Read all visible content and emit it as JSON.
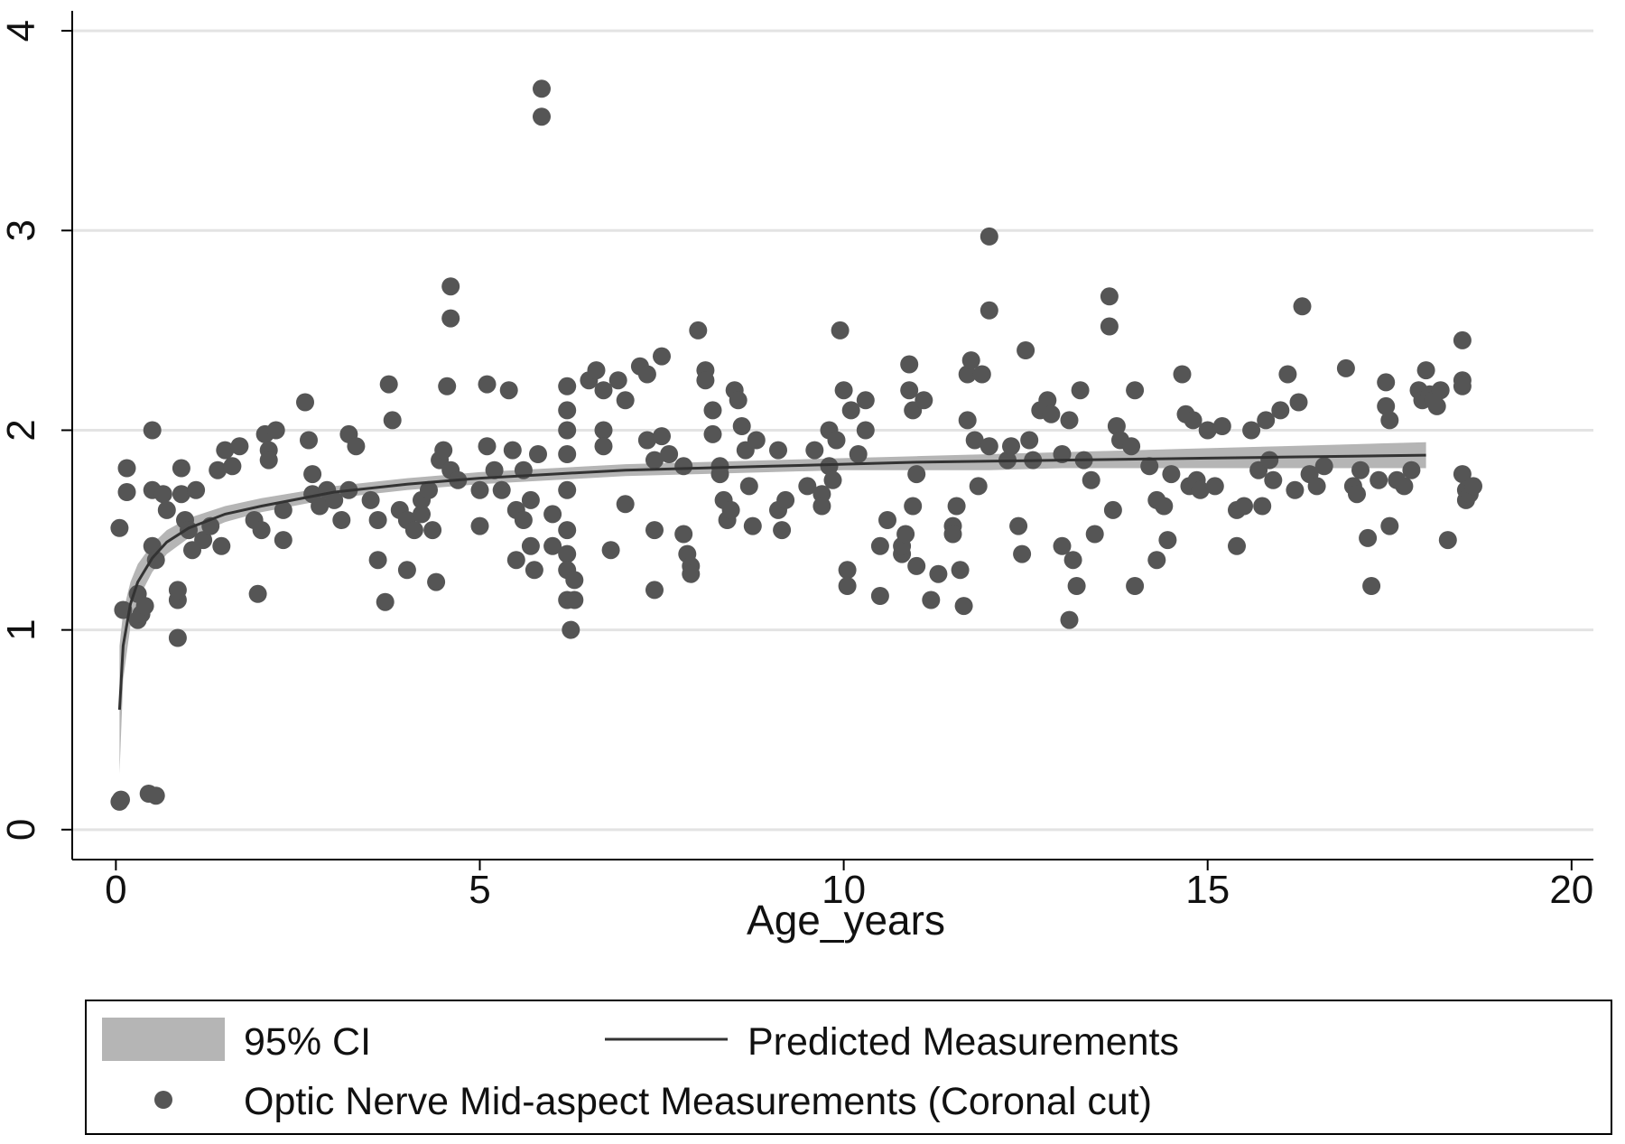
{
  "chart_data": {
    "type": "scatter",
    "title": "",
    "xlabel": "Age_years",
    "ylabel": "",
    "xlim": [
      -0.6,
      20.3
    ],
    "ylim": [
      -0.15,
      4.1
    ],
    "xticks": [
      "0",
      "5",
      "10",
      "15",
      "20"
    ],
    "xtick_values": [
      0,
      5,
      10,
      15,
      20
    ],
    "yticks": [
      "0",
      "1",
      "2",
      "3",
      "4"
    ],
    "ytick_values": [
      0,
      1,
      2,
      3,
      4
    ],
    "grid": "horizontal",
    "legend_position": "bottom",
    "colors": {
      "points": "#555555",
      "line": "#333333",
      "ci_band": "#b5b5b5",
      "grid": "#e3e3e3",
      "axis": "#000000"
    },
    "legend": {
      "ci_label": "95% CI",
      "line_label": "Predicted Measurements",
      "points_label": "Optic Nerve Mid-aspect Measurements (Coronal cut)"
    },
    "fit": {
      "x": [
        0.05,
        0.1,
        0.2,
        0.3,
        0.5,
        0.7,
        1.0,
        1.5,
        2.0,
        3.0,
        4.0,
        5.0,
        6.0,
        7.0,
        8.0,
        9.0,
        10.0,
        11.0,
        12.0,
        13.0,
        14.0,
        15.0,
        16.0,
        17.0,
        18.0
      ],
      "y": [
        0.6,
        0.92,
        1.13,
        1.24,
        1.36,
        1.44,
        1.51,
        1.58,
        1.62,
        1.69,
        1.73,
        1.76,
        1.78,
        1.8,
        1.81,
        1.82,
        1.83,
        1.84,
        1.845,
        1.85,
        1.855,
        1.86,
        1.865,
        1.87,
        1.875
      ],
      "lo": [
        0.28,
        0.75,
        1.02,
        1.15,
        1.29,
        1.38,
        1.46,
        1.54,
        1.59,
        1.66,
        1.7,
        1.73,
        1.75,
        1.77,
        1.78,
        1.79,
        1.8,
        1.8,
        1.8,
        1.81,
        1.81,
        1.81,
        1.81,
        1.81,
        1.81
      ],
      "hi": [
        0.92,
        1.09,
        1.24,
        1.33,
        1.43,
        1.5,
        1.56,
        1.62,
        1.66,
        1.72,
        1.76,
        1.79,
        1.81,
        1.83,
        1.84,
        1.85,
        1.86,
        1.87,
        1.88,
        1.89,
        1.9,
        1.91,
        1.92,
        1.93,
        1.94
      ]
    },
    "points": [
      [
        0.05,
        0.14
      ],
      [
        0.07,
        0.15
      ],
      [
        0.05,
        1.51
      ],
      [
        0.1,
        1.1
      ],
      [
        0.15,
        1.81
      ],
      [
        0.15,
        1.69
      ],
      [
        0.3,
        1.05
      ],
      [
        0.3,
        1.18
      ],
      [
        0.35,
        1.08
      ],
      [
        0.4,
        1.12
      ],
      [
        0.45,
        0.18
      ],
      [
        0.55,
        0.17
      ],
      [
        0.5,
        2.0
      ],
      [
        0.5,
        1.42
      ],
      [
        0.5,
        1.7
      ],
      [
        0.55,
        1.35
      ],
      [
        0.65,
        1.68
      ],
      [
        0.7,
        1.6
      ],
      [
        0.85,
        1.15
      ],
      [
        0.85,
        1.2
      ],
      [
        0.85,
        0.96
      ],
      [
        0.9,
        1.81
      ],
      [
        0.9,
        1.68
      ],
      [
        0.95,
        1.55
      ],
      [
        1.0,
        1.5
      ],
      [
        1.05,
        1.4
      ],
      [
        1.1,
        1.7
      ],
      [
        1.2,
        1.45
      ],
      [
        1.3,
        1.52
      ],
      [
        1.4,
        1.8
      ],
      [
        1.45,
        1.42
      ],
      [
        1.5,
        1.9
      ],
      [
        1.6,
        1.82
      ],
      [
        1.7,
        1.92
      ],
      [
        1.9,
        1.55
      ],
      [
        1.95,
        1.18
      ],
      [
        2.0,
        1.5
      ],
      [
        2.05,
        1.98
      ],
      [
        2.1,
        1.9
      ],
      [
        2.1,
        1.85
      ],
      [
        2.2,
        2.0
      ],
      [
        2.3,
        1.6
      ],
      [
        2.3,
        1.45
      ],
      [
        2.6,
        2.14
      ],
      [
        2.65,
        1.95
      ],
      [
        2.7,
        1.78
      ],
      [
        2.7,
        1.68
      ],
      [
        2.8,
        1.62
      ],
      [
        2.9,
        1.7
      ],
      [
        3.0,
        1.65
      ],
      [
        3.1,
        1.55
      ],
      [
        3.2,
        1.7
      ],
      [
        3.2,
        1.98
      ],
      [
        3.3,
        1.92
      ],
      [
        3.5,
        1.65
      ],
      [
        3.6,
        1.55
      ],
      [
        3.6,
        1.35
      ],
      [
        3.7,
        1.14
      ],
      [
        3.75,
        2.23
      ],
      [
        3.8,
        2.05
      ],
      [
        3.9,
        1.6
      ],
      [
        4.0,
        1.55
      ],
      [
        4.0,
        1.3
      ],
      [
        4.1,
        1.5
      ],
      [
        4.2,
        1.65
      ],
      [
        4.2,
        1.58
      ],
      [
        4.3,
        1.7
      ],
      [
        4.35,
        1.5
      ],
      [
        4.4,
        1.24
      ],
      [
        4.45,
        1.85
      ],
      [
        4.5,
        1.9
      ],
      [
        4.55,
        2.22
      ],
      [
        4.6,
        2.72
      ],
      [
        4.6,
        2.56
      ],
      [
        4.6,
        1.8
      ],
      [
        4.7,
        1.75
      ],
      [
        5.0,
        1.7
      ],
      [
        5.0,
        1.52
      ],
      [
        5.1,
        2.23
      ],
      [
        5.1,
        1.92
      ],
      [
        5.2,
        1.8
      ],
      [
        5.3,
        1.7
      ],
      [
        5.4,
        2.2
      ],
      [
        5.45,
        1.9
      ],
      [
        5.5,
        1.6
      ],
      [
        5.5,
        1.35
      ],
      [
        5.6,
        1.55
      ],
      [
        5.6,
        1.8
      ],
      [
        5.7,
        1.65
      ],
      [
        5.7,
        1.42
      ],
      [
        5.75,
        1.3
      ],
      [
        5.8,
        1.88
      ],
      [
        5.85,
        3.71
      ],
      [
        5.85,
        3.57
      ],
      [
        6.0,
        1.58
      ],
      [
        6.0,
        1.42
      ],
      [
        6.2,
        2.22
      ],
      [
        6.2,
        2.1
      ],
      [
        6.2,
        2.0
      ],
      [
        6.2,
        1.88
      ],
      [
        6.2,
        1.7
      ],
      [
        6.2,
        1.5
      ],
      [
        6.2,
        1.38
      ],
      [
        6.2,
        1.3
      ],
      [
        6.2,
        1.15
      ],
      [
        6.25,
        1.0
      ],
      [
        6.3,
        1.15
      ],
      [
        6.3,
        1.25
      ],
      [
        6.5,
        2.25
      ],
      [
        6.6,
        2.3
      ],
      [
        6.7,
        2.2
      ],
      [
        6.7,
        2.0
      ],
      [
        6.7,
        1.92
      ],
      [
        6.8,
        1.4
      ],
      [
        6.9,
        2.25
      ],
      [
        7.0,
        2.15
      ],
      [
        7.0,
        1.63
      ],
      [
        7.2,
        2.32
      ],
      [
        7.3,
        2.28
      ],
      [
        7.3,
        1.95
      ],
      [
        7.4,
        1.85
      ],
      [
        7.4,
        1.5
      ],
      [
        7.4,
        1.2
      ],
      [
        7.5,
        2.37
      ],
      [
        7.5,
        1.97
      ],
      [
        7.6,
        1.88
      ],
      [
        7.8,
        1.82
      ],
      [
        7.8,
        1.48
      ],
      [
        7.85,
        1.38
      ],
      [
        7.9,
        1.32
      ],
      [
        7.9,
        1.28
      ],
      [
        8.0,
        2.5
      ],
      [
        8.1,
        2.3
      ],
      [
        8.1,
        2.25
      ],
      [
        8.2,
        2.1
      ],
      [
        8.2,
        1.98
      ],
      [
        8.3,
        1.82
      ],
      [
        8.3,
        1.78
      ],
      [
        8.35,
        1.65
      ],
      [
        8.4,
        1.55
      ],
      [
        8.45,
        1.6
      ],
      [
        8.5,
        2.2
      ],
      [
        8.55,
        2.15
      ],
      [
        8.6,
        2.02
      ],
      [
        8.65,
        1.9
      ],
      [
        8.7,
        1.72
      ],
      [
        8.75,
        1.52
      ],
      [
        8.8,
        1.95
      ],
      [
        9.1,
        1.9
      ],
      [
        9.1,
        1.6
      ],
      [
        9.15,
        1.5
      ],
      [
        9.2,
        1.65
      ],
      [
        9.5,
        1.72
      ],
      [
        9.6,
        1.9
      ],
      [
        9.7,
        1.68
      ],
      [
        9.7,
        1.62
      ],
      [
        9.8,
        1.82
      ],
      [
        9.8,
        2.0
      ],
      [
        9.85,
        1.75
      ],
      [
        9.9,
        1.95
      ],
      [
        9.95,
        2.5
      ],
      [
        10.0,
        2.2
      ],
      [
        10.05,
        1.3
      ],
      [
        10.05,
        1.22
      ],
      [
        10.1,
        2.1
      ],
      [
        10.2,
        1.88
      ],
      [
        10.3,
        2.15
      ],
      [
        10.3,
        2.0
      ],
      [
        10.5,
        1.42
      ],
      [
        10.5,
        1.17
      ],
      [
        10.6,
        1.55
      ],
      [
        10.8,
        1.38
      ],
      [
        10.8,
        1.42
      ],
      [
        10.85,
        1.48
      ],
      [
        10.9,
        2.33
      ],
      [
        10.9,
        2.2
      ],
      [
        10.95,
        2.1
      ],
      [
        10.95,
        1.62
      ],
      [
        11.0,
        1.78
      ],
      [
        11.0,
        1.32
      ],
      [
        11.1,
        2.15
      ],
      [
        11.2,
        1.15
      ],
      [
        11.3,
        1.28
      ],
      [
        11.5,
        1.52
      ],
      [
        11.5,
        1.48
      ],
      [
        11.55,
        1.62
      ],
      [
        11.6,
        1.3
      ],
      [
        11.65,
        1.12
      ],
      [
        11.7,
        2.05
      ],
      [
        11.7,
        2.28
      ],
      [
        11.75,
        2.35
      ],
      [
        11.8,
        1.95
      ],
      [
        11.85,
        1.72
      ],
      [
        11.9,
        2.28
      ],
      [
        12.0,
        2.97
      ],
      [
        12.0,
        2.6
      ],
      [
        12.0,
        1.92
      ],
      [
        12.25,
        1.85
      ],
      [
        12.3,
        1.92
      ],
      [
        12.4,
        1.52
      ],
      [
        12.45,
        1.38
      ],
      [
        12.5,
        2.4
      ],
      [
        12.55,
        1.95
      ],
      [
        12.6,
        1.85
      ],
      [
        12.7,
        2.1
      ],
      [
        12.8,
        2.15
      ],
      [
        12.85,
        2.08
      ],
      [
        13.0,
        1.88
      ],
      [
        13.0,
        1.42
      ],
      [
        13.1,
        1.05
      ],
      [
        13.1,
        2.05
      ],
      [
        13.15,
        1.35
      ],
      [
        13.2,
        1.22
      ],
      [
        13.25,
        2.2
      ],
      [
        13.3,
        1.85
      ],
      [
        13.4,
        1.75
      ],
      [
        13.45,
        1.48
      ],
      [
        13.65,
        2.67
      ],
      [
        13.65,
        2.52
      ],
      [
        13.7,
        1.6
      ],
      [
        13.75,
        2.02
      ],
      [
        13.8,
        1.95
      ],
      [
        13.95,
        1.92
      ],
      [
        14.0,
        2.2
      ],
      [
        14.0,
        1.22
      ],
      [
        14.2,
        1.82
      ],
      [
        14.3,
        1.65
      ],
      [
        14.3,
        1.35
      ],
      [
        14.4,
        1.62
      ],
      [
        14.45,
        1.45
      ],
      [
        14.5,
        1.78
      ],
      [
        14.65,
        2.28
      ],
      [
        14.7,
        2.08
      ],
      [
        14.75,
        1.72
      ],
      [
        14.8,
        2.05
      ],
      [
        14.85,
        1.75
      ],
      [
        14.9,
        1.7
      ],
      [
        15.0,
        2.0
      ],
      [
        15.1,
        1.72
      ],
      [
        15.2,
        2.02
      ],
      [
        15.4,
        1.42
      ],
      [
        15.4,
        1.6
      ],
      [
        15.5,
        1.62
      ],
      [
        15.6,
        2.0
      ],
      [
        15.7,
        1.8
      ],
      [
        15.75,
        1.62
      ],
      [
        15.8,
        2.05
      ],
      [
        15.85,
        1.85
      ],
      [
        15.9,
        1.75
      ],
      [
        16.0,
        2.1
      ],
      [
        16.1,
        2.28
      ],
      [
        16.2,
        1.7
      ],
      [
        16.25,
        2.14
      ],
      [
        16.3,
        2.62
      ],
      [
        16.4,
        1.78
      ],
      [
        16.5,
        1.72
      ],
      [
        16.6,
        1.82
      ],
      [
        16.9,
        2.31
      ],
      [
        17.0,
        1.72
      ],
      [
        17.05,
        1.68
      ],
      [
        17.1,
        1.8
      ],
      [
        17.2,
        1.46
      ],
      [
        17.25,
        1.22
      ],
      [
        17.35,
        1.75
      ],
      [
        17.45,
        2.24
      ],
      [
        17.45,
        2.12
      ],
      [
        17.5,
        2.05
      ],
      [
        17.5,
        1.52
      ],
      [
        17.6,
        1.75
      ],
      [
        17.7,
        1.72
      ],
      [
        17.8,
        1.8
      ],
      [
        17.9,
        2.2
      ],
      [
        17.95,
        2.15
      ],
      [
        18.0,
        2.3
      ],
      [
        18.05,
        2.18
      ],
      [
        18.1,
        2.15
      ],
      [
        18.15,
        2.12
      ],
      [
        18.2,
        2.2
      ],
      [
        18.3,
        1.45
      ],
      [
        18.5,
        2.45
      ],
      [
        18.5,
        2.25
      ],
      [
        18.5,
        2.22
      ],
      [
        18.5,
        1.78
      ],
      [
        18.55,
        1.65
      ],
      [
        18.55,
        1.7
      ],
      [
        18.6,
        1.68
      ],
      [
        18.65,
        1.72
      ]
    ]
  }
}
